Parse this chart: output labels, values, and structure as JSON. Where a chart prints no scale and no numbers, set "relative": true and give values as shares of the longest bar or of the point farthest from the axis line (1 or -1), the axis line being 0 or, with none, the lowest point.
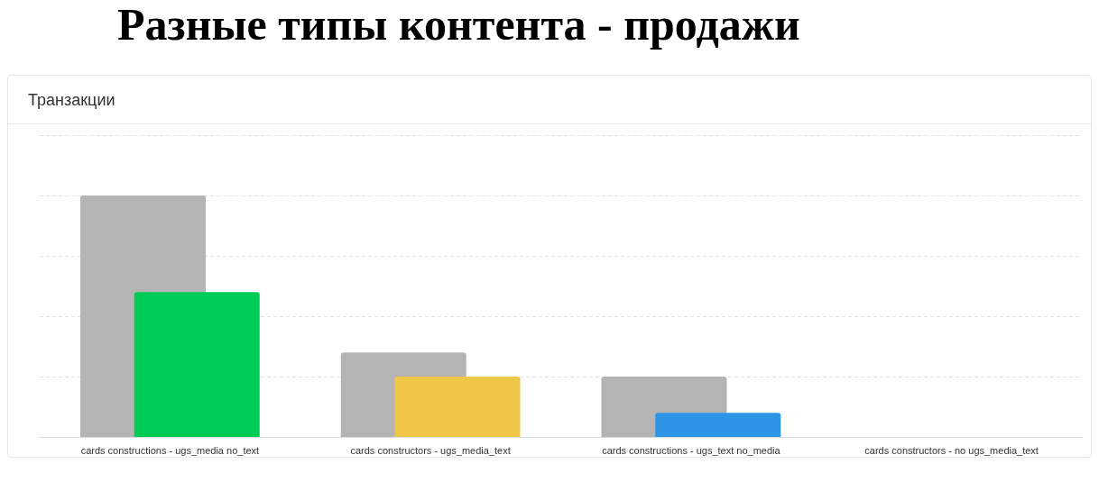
{
  "chart_data": {
    "type": "bar",
    "title": "Разные типы контента - продажи",
    "subtitle": "Транзакции",
    "categories": [
      "cards constructions - ugs_media no_text",
      "cards constructors - ugs_media_text",
      "cards constructions - ugs_text no_media",
      "cards constructors - no ugs_media_text"
    ],
    "series": [
      {
        "color": "#b4b4b4",
        "values": [
          1,
          0.35,
          0.25,
          null
        ]
      },
      {
        "colors": [
          "#00cc55",
          "#f0c648",
          "#2d95e5",
          null
        ],
        "values": [
          0.6,
          0.25,
          0.1,
          null
        ]
      }
    ],
    "relative": true,
    "grid": "y"
  }
}
